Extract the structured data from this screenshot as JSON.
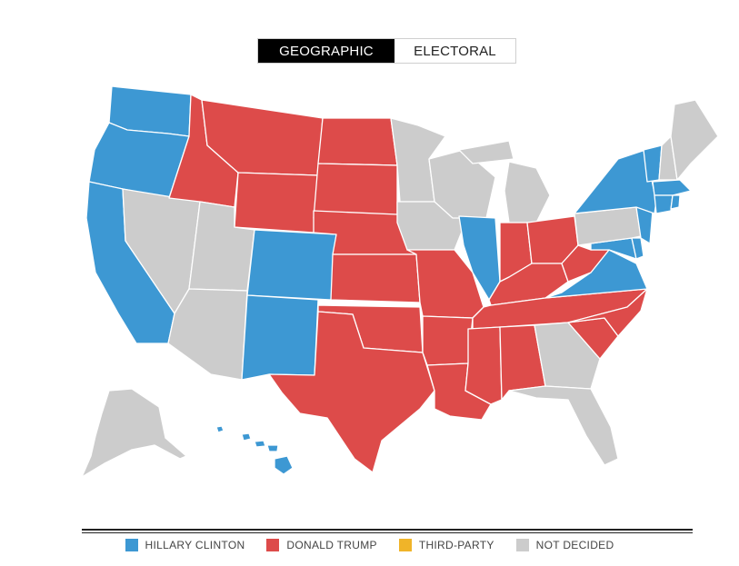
{
  "toggle": {
    "geographic_label": "GEOGRAPHIC",
    "electoral_label": "ELECTORAL",
    "selected": "GEOGRAPHIC"
  },
  "colors": {
    "clinton": "#3d98d3",
    "trump": "#dd4b4a",
    "third_party": "#f0b429",
    "not_decided": "#cccccc"
  },
  "legend": [
    {
      "label": "HILLARY CLINTON",
      "color_key": "clinton"
    },
    {
      "label": "DONALD TRUMP",
      "color_key": "trump"
    },
    {
      "label": "THIRD-PARTY",
      "color_key": "third_party"
    },
    {
      "label": "NOT DECIDED",
      "color_key": "not_decided"
    }
  ],
  "states": {
    "WA": "clinton",
    "OR": "clinton",
    "CA": "clinton",
    "NV": "not_decided",
    "ID": "trump",
    "MT": "trump",
    "WY": "trump",
    "UT": "not_decided",
    "AZ": "not_decided",
    "CO": "clinton",
    "NM": "clinton",
    "ND": "trump",
    "SD": "trump",
    "NE": "trump",
    "KS": "trump",
    "OK": "trump",
    "TX": "trump",
    "MN": "not_decided",
    "IA": "not_decided",
    "MO": "trump",
    "AR": "trump",
    "LA": "trump",
    "WI": "not_decided",
    "IL": "clinton",
    "MI": "not_decided",
    "IN": "trump",
    "OH": "trump",
    "KY": "trump",
    "TN": "trump",
    "MS": "trump",
    "AL": "trump",
    "GA": "not_decided",
    "FL": "not_decided",
    "SC": "trump",
    "NC": "trump",
    "VA": "clinton",
    "WV": "trump",
    "MD": "clinton",
    "DE": "clinton",
    "NJ": "clinton",
    "PA": "not_decided",
    "NY": "clinton",
    "CT": "clinton",
    "RI": "clinton",
    "MA": "clinton",
    "VT": "clinton",
    "NH": "not_decided",
    "ME": "not_decided",
    "AK": "not_decided",
    "HI": "clinton"
  }
}
